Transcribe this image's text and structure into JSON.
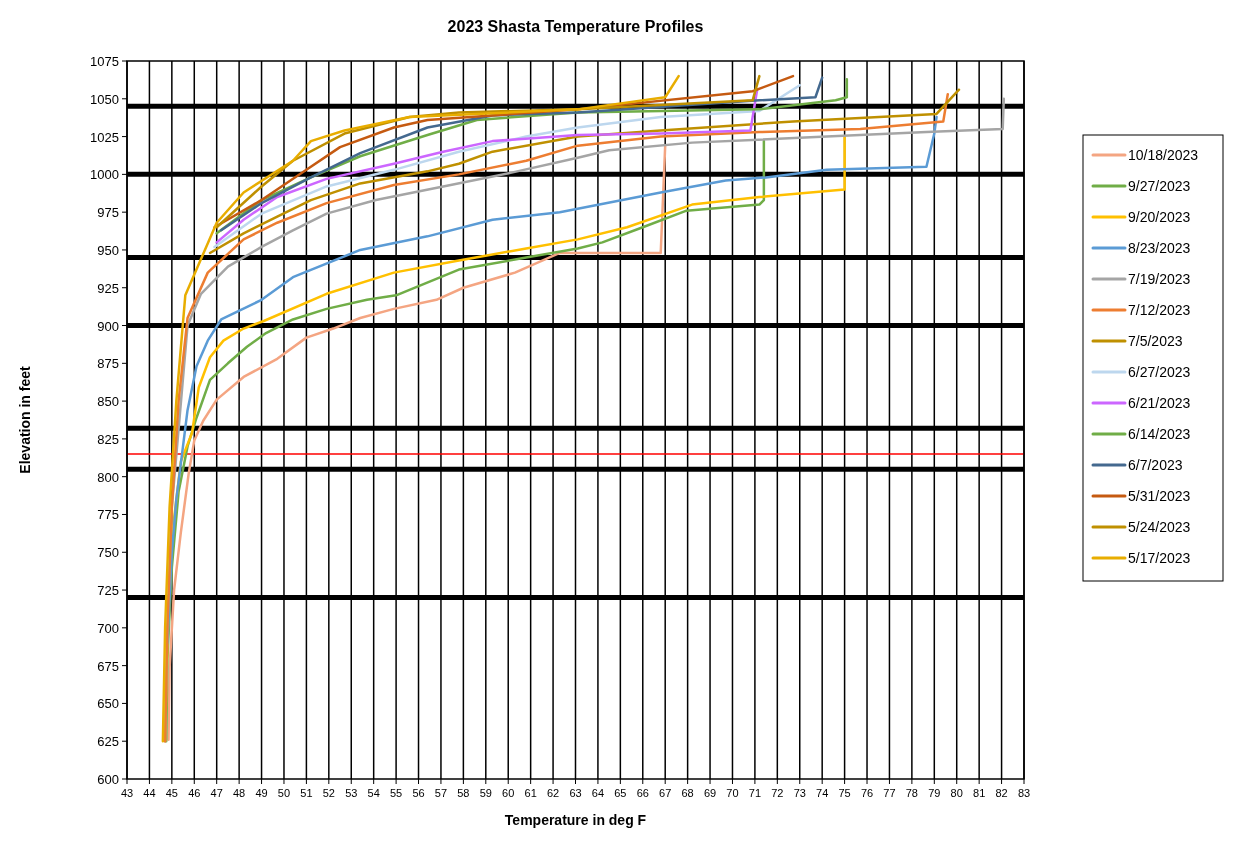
{
  "chart_data": {
    "type": "line",
    "title": "2023 Shasta Temperature Profiles",
    "xlabel": "Temperature in deg F",
    "ylabel": "Elevation in feet",
    "xlim": [
      43,
      83
    ],
    "xticks": [
      43,
      44,
      45,
      46,
      47,
      48,
      49,
      50,
      51,
      52,
      53,
      54,
      55,
      56,
      57,
      58,
      59,
      60,
      61,
      62,
      63,
      64,
      65,
      66,
      67,
      68,
      69,
      70,
      71,
      72,
      73,
      74,
      75,
      76,
      77,
      78,
      79,
      80,
      81,
      82,
      83
    ],
    "ylim": [
      600,
      1075
    ],
    "yticks": [
      600,
      625,
      650,
      675,
      700,
      725,
      750,
      775,
      800,
      825,
      850,
      875,
      900,
      925,
      950,
      975,
      1000,
      1025,
      1050,
      1075
    ],
    "grid": "x",
    "legend": "right",
    "marker": "none",
    "line_style": "solid",
    "ref_lines": [
      {
        "axis": "y",
        "value": 1045,
        "color": "#000000"
      },
      {
        "axis": "y",
        "value": 1000,
        "color": "#000000"
      },
      {
        "axis": "y",
        "value": 945,
        "color": "#000000"
      },
      {
        "axis": "y",
        "value": 900,
        "color": "#000000"
      },
      {
        "axis": "y",
        "value": 832,
        "color": "#000000"
      },
      {
        "axis": "y",
        "value": 805,
        "color": "#000000"
      },
      {
        "axis": "y",
        "value": 720,
        "color": "#000000"
      },
      {
        "axis": "y",
        "value": 815,
        "color": "#ff0000"
      }
    ],
    "series": [
      {
        "name": "10/18/2023",
        "color": "#f4a582",
        "x": [
          44.85,
          44.9,
          45.1,
          45.4,
          45.75,
          46.0,
          46.4,
          47.0,
          48.2,
          49.7,
          51.0,
          52.2,
          53.4,
          54.9,
          56.8,
          58.0,
          60.3,
          62.3,
          66.8,
          67.0
        ],
        "values": [
          626,
          674,
          725,
          763,
          802,
          824,
          837,
          851,
          866,
          878,
          892,
          898,
          905,
          911,
          917,
          925,
          935,
          948,
          948,
          1019
        ]
      },
      {
        "name": "9/27/2023",
        "color": "#70ad47",
        "x": [
          44.75,
          44.8,
          45.0,
          45.3,
          45.7,
          46.1,
          46.7,
          47.5,
          48.35,
          49.2,
          50.4,
          51.9,
          53.7,
          55.0,
          57.8,
          60.8,
          63.1,
          64.2,
          66.0,
          67.95,
          71.2,
          71.4,
          71.4
        ],
        "values": [
          625,
          680,
          740,
          790,
          820,
          839,
          864,
          875,
          886,
          895,
          904,
          911,
          917,
          920,
          937,
          945,
          951,
          955,
          965,
          976,
          980,
          983,
          1022
        ]
      },
      {
        "name": "9/20/2023",
        "color": "#ffc000",
        "x": [
          44.7,
          44.8,
          45.0,
          45.4,
          45.9,
          46.2,
          46.7,
          47.3,
          48.2,
          49.1,
          51.9,
          54.9,
          57.8,
          60.8,
          63.1,
          65.3,
          68.2,
          71.2,
          75.0,
          75.0
        ],
        "values": [
          625,
          690,
          760,
          810,
          829,
          859,
          879,
          890,
          898,
          903,
          921,
          935,
          943,
          951,
          957,
          965,
          980,
          985,
          990,
          1025
        ]
      },
      {
        "name": "8/23/2023",
        "color": "#5b9bd5",
        "x": [
          44.8,
          45.0,
          45.2,
          45.7,
          46.1,
          46.6,
          47.2,
          49.0,
          50.4,
          53.4,
          56.4,
          59.3,
          62.3,
          66.8,
          69.7,
          71.5,
          74.2,
          78.65,
          79.0,
          79.1
        ],
        "values": [
          690,
          750,
          785,
          844,
          873,
          890,
          904,
          917,
          932,
          950,
          959,
          970,
          975,
          988,
          996,
          998,
          1003,
          1005,
          1027,
          1038
        ]
      },
      {
        "name": "7/19/2023",
        "color": "#a5a5a5",
        "x": [
          44.7,
          44.8,
          45.0,
          45.7,
          46.3,
          47.5,
          49.0,
          50.4,
          51.9,
          54.1,
          57.1,
          60.1,
          63.1,
          64.5,
          68.2,
          74.2,
          78.65,
          82.05,
          82.1
        ],
        "values": [
          625,
          700,
          780,
          900,
          921,
          939,
          952,
          963,
          974,
          983,
          992,
          1001,
          1011,
          1016,
          1021,
          1025,
          1028,
          1030,
          1050
        ]
      },
      {
        "name": "7/12/2023",
        "color": "#ed7d31",
        "x": [
          44.7,
          44.8,
          45.0,
          45.3,
          45.7,
          46.6,
          48.2,
          49.7,
          51.9,
          54.9,
          57.8,
          60.8,
          63.1,
          66.8,
          71.2,
          75.7,
          79.4,
          79.6
        ],
        "values": [
          625,
          700,
          780,
          850,
          905,
          935,
          957,
          968,
          981,
          993,
          1000,
          1009,
          1019,
          1025,
          1028,
          1030,
          1035,
          1053
        ]
      },
      {
        "name": "7/5/2023",
        "color": "#bf9000",
        "x": [
          46.7,
          48.2,
          49.7,
          51.2,
          53.4,
          56.4,
          57.8,
          59.3,
          63.1,
          66.8,
          72.7,
          79.1,
          80.1
        ],
        "values": [
          948,
          961,
          972,
          983,
          994,
          1002,
          1007,
          1015,
          1025,
          1029,
          1035,
          1040,
          1056
        ]
      },
      {
        "name": "6/27/2023",
        "color": "#bdd7ee",
        "x": [
          46.9,
          49.0,
          51.9,
          54.9,
          57.8,
          60.8,
          63.1,
          66.8,
          71.2,
          73.0
        ],
        "values": [
          952,
          974,
          992,
          1003,
          1015,
          1025,
          1031,
          1038,
          1042,
          1059
        ]
      },
      {
        "name": "6/21/2023",
        "color": "#cc66ff",
        "x": [
          47.0,
          48.2,
          49.7,
          51.9,
          54.9,
          57.1,
          59.3,
          63.1,
          66.8,
          70.8,
          71.1
        ],
        "values": [
          955,
          970,
          985,
          997,
          1007,
          1015,
          1022,
          1026,
          1027,
          1029,
          1056
        ]
      },
      {
        "name": "6/14/2023",
        "color": "#70ad47",
        "x": [
          47.0,
          49.0,
          51.2,
          53.4,
          56.4,
          58.6,
          63.1,
          71.2,
          74.6,
          75.1,
          75.1
        ],
        "values": [
          961,
          983,
          998,
          1012,
          1026,
          1036,
          1041,
          1043,
          1049,
          1051,
          1063
        ]
      },
      {
        "name": "6/7/2023",
        "color": "#44698f",
        "x": [
          47.2,
          49.0,
          51.2,
          53.4,
          56.4,
          59.3,
          63.1,
          71.2,
          73.7,
          74.0
        ],
        "values": [
          963,
          981,
          998,
          1014,
          1031,
          1039,
          1041,
          1049,
          1051,
          1064
        ]
      },
      {
        "name": "5/31/2023",
        "color": "#c55a11",
        "x": [
          46.9,
          49.0,
          51.0,
          52.5,
          54.9,
          56.4,
          63.1,
          70.9,
          72.7
        ],
        "values": [
          965,
          983,
          1003,
          1018,
          1031,
          1036,
          1043,
          1055,
          1065
        ]
      },
      {
        "name": "5/24/2023",
        "color": "#bf9000",
        "x": [
          47.0,
          49.0,
          50.4,
          52.7,
          55.6,
          57.8,
          63.1,
          70.9,
          71.2
        ],
        "values": [
          965,
          992,
          1009,
          1027,
          1038,
          1041,
          1043,
          1049,
          1065
        ]
      },
      {
        "name": "5/17/2023",
        "color": "#e8ad00",
        "x": [
          44.6,
          44.7,
          44.9,
          45.2,
          45.6,
          47.0,
          48.2,
          50.4,
          51.2,
          52.7,
          55.6,
          63.1,
          67.0,
          67.6
        ],
        "values": [
          625,
          700,
          780,
          850,
          920,
          968,
          988,
          1009,
          1022,
          1029,
          1038,
          1043,
          1051,
          1065
        ]
      }
    ]
  }
}
